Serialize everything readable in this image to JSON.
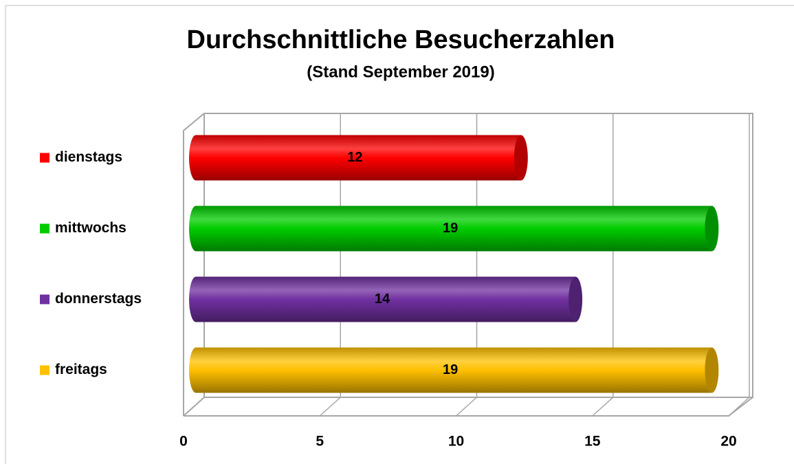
{
  "chart_data": {
    "type": "bar3d_horizontal",
    "title": "Durchschnittliche Besucherzahlen",
    "subtitle": "(Stand September 2019)",
    "categories": [
      "dienstags",
      "mittwochs",
      "donnerstags",
      "freitags"
    ],
    "values": [
      12,
      19,
      14,
      19
    ],
    "colors": [
      "#ff0000",
      "#00cc00",
      "#7030a0",
      "#ffc000"
    ],
    "xlim": [
      0,
      20
    ],
    "xticks": [
      0,
      5,
      10,
      15,
      20
    ],
    "grid": true,
    "legend": "left"
  }
}
